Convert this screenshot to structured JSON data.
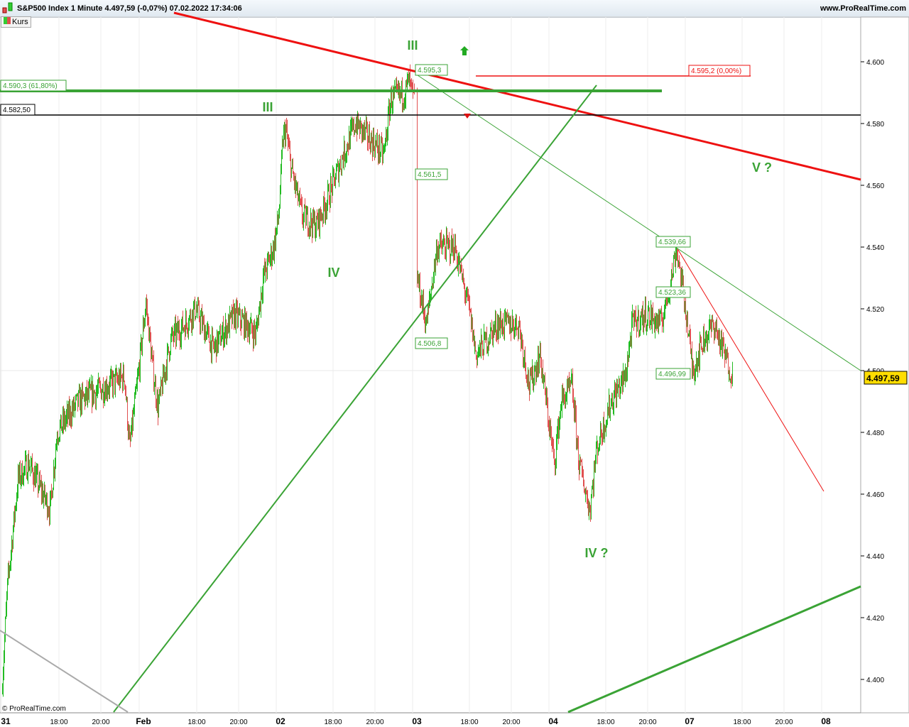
{
  "header": {
    "title": "S&P500 Index 1 Minute 4.497,59 (-0,07%) 07.02.2022 17:34:06",
    "site": "www.ProRealTime.com",
    "legend": "Kurs",
    "copyright": "© ProRealTime.com"
  },
  "chart_data": {
    "type": "candlestick-line",
    "title": "S&P500 Index 1 Minute",
    "ylim": [
      4390,
      4615
    ],
    "yticks": [
      "4.600",
      "4.580",
      "4.560",
      "4.540",
      "4.520",
      "4.500",
      "4.480",
      "4.460",
      "4.440",
      "4.420",
      "4.400"
    ],
    "ytick_values": [
      4600,
      4580,
      4560,
      4540,
      4520,
      4500,
      4480,
      4460,
      4440,
      4420,
      4400
    ],
    "xticks": [
      "31",
      "18:00",
      "20:00",
      "Feb",
      "18:00",
      "20:00",
      "02",
      "18:00",
      "20:00",
      "03",
      "18:00",
      "20:00",
      "04",
      "18:00",
      "20:00",
      "07",
      "18:00",
      "20:00",
      "08"
    ],
    "last_price": "4.497,59",
    "price_labels": [
      "4.595,3",
      "4.561,5",
      "4.506,8",
      "4.539,66",
      "4.523,36",
      "4.496,99"
    ],
    "level_labels": {
      "fib": "4.590,3 (61,80%)",
      "support": "4.582,50",
      "red": "4.595,2 (0,00%)"
    },
    "wave_labels": [
      "III",
      "III",
      "IV",
      "IV ?",
      "V ?"
    ],
    "colors": {
      "up": "#22bb22",
      "down": "#e05050",
      "wave": "#3aa335",
      "trend_red": "#ee1111"
    }
  }
}
